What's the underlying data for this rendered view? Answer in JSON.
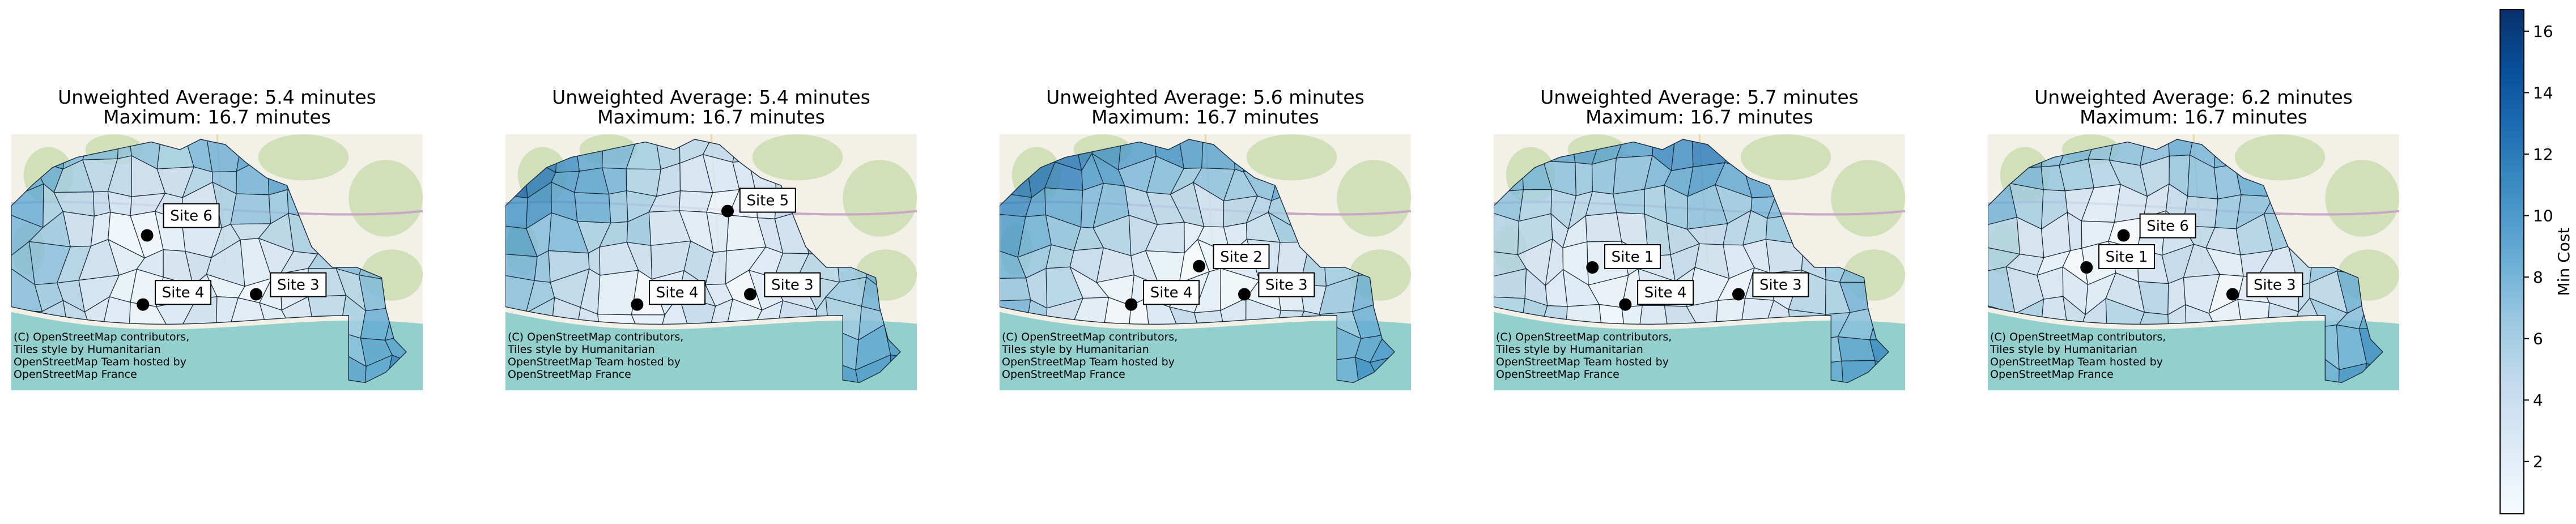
{
  "chart_data": [
    {
      "type": "map",
      "title_line1": "Unweighted Average: 5.4 minutes",
      "title_line2": "Maximum: 16.7 minutes",
      "unweighted_average_minutes": 5.4,
      "maximum_minutes": 16.7,
      "sites": [
        {
          "label": "Site 6"
        },
        {
          "label": "Site 4"
        },
        {
          "label": "Site 3"
        }
      ],
      "attribution": [
        "(C) OpenStreetMap contributors,",
        "Tiles style by Humanitarian",
        "OpenStreetMap Team hosted by",
        "OpenStreetMap France"
      ]
    },
    {
      "type": "map",
      "title_line1": "Unweighted Average: 5.4 minutes",
      "title_line2": "Maximum: 16.7 minutes",
      "unweighted_average_minutes": 5.4,
      "maximum_minutes": 16.7,
      "sites": [
        {
          "label": "Site 5"
        },
        {
          "label": "Site 4"
        },
        {
          "label": "Site 3"
        }
      ],
      "attribution": [
        "(C) OpenStreetMap contributors,",
        "Tiles style by Humanitarian",
        "OpenStreetMap Team hosted by",
        "OpenStreetMap France"
      ]
    },
    {
      "type": "map",
      "title_line1": "Unweighted Average: 5.6 minutes",
      "title_line2": "Maximum: 16.7 minutes",
      "unweighted_average_minutes": 5.6,
      "maximum_minutes": 16.7,
      "sites": [
        {
          "label": "Site 2"
        },
        {
          "label": "Site 4"
        },
        {
          "label": "Site 3"
        }
      ],
      "attribution": [
        "(C) OpenStreetMap contributors,",
        "Tiles style by Humanitarian",
        "OpenStreetMap Team hosted by",
        "OpenStreetMap France"
      ]
    },
    {
      "type": "map",
      "title_line1": "Unweighted Average: 5.7 minutes",
      "title_line2": "Maximum: 16.7 minutes",
      "unweighted_average_minutes": 5.7,
      "maximum_minutes": 16.7,
      "sites": [
        {
          "label": "Site 1"
        },
        {
          "label": "Site 4"
        },
        {
          "label": "Site 3"
        }
      ],
      "attribution": [
        "(C) OpenStreetMap contributors,",
        "Tiles style by Humanitarian",
        "OpenStreetMap Team hosted by",
        "OpenStreetMap France"
      ]
    },
    {
      "type": "map",
      "title_line1": "Unweighted Average: 6.2 minutes",
      "title_line2": "Maximum: 16.7 minutes",
      "unweighted_average_minutes": 6.2,
      "maximum_minutes": 16.7,
      "sites": [
        {
          "label": "Site 6"
        },
        {
          "label": "Site 1"
        },
        {
          "label": "Site 3"
        }
      ],
      "attribution": [
        "(C) OpenStreetMap contributors,",
        "Tiles style by Humanitarian",
        "OpenStreetMap Team hosted by",
        "OpenStreetMap France"
      ]
    }
  ],
  "colorbar": {
    "label": "Min Cost",
    "range": [
      0.3,
      16.7
    ],
    "ticks": [
      2,
      4,
      6,
      8,
      10,
      12,
      14,
      16
    ],
    "colormap": "Blues",
    "color_low": "#f7fbff",
    "color_high": "#08306b"
  },
  "colors": {
    "sea": "#93cfcd",
    "land": "#f3f0e7",
    "park": "#c9dcae",
    "road": "#c9a7c7",
    "marker": "#000000"
  }
}
